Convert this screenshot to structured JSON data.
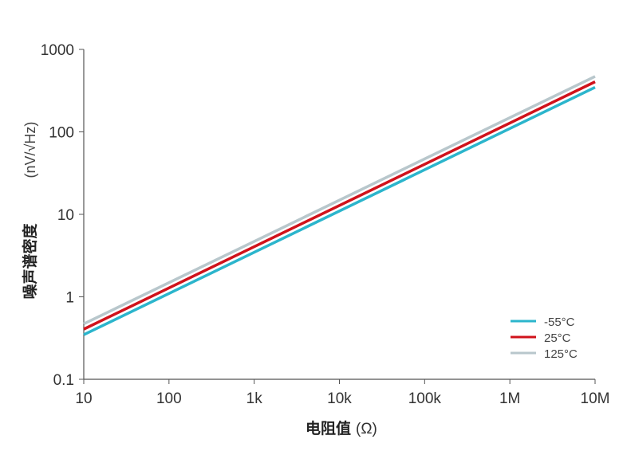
{
  "chart_data": {
    "type": "line",
    "title": "",
    "xlabel": "电阻值",
    "xlabel_unit": "(Ω)",
    "ylabel": "噪声谱密度",
    "ylabel_unit": "(nV/√Hz)",
    "x_scale": "log",
    "y_scale": "log",
    "xlim": [
      10,
      10000000
    ],
    "ylim": [
      0.1,
      1000
    ],
    "grid": false,
    "legend_position": "bottom-right",
    "x_ticks": [
      {
        "value": 10,
        "label": "10"
      },
      {
        "value": 100,
        "label": "100"
      },
      {
        "value": 1000,
        "label": "1k"
      },
      {
        "value": 10000,
        "label": "10k"
      },
      {
        "value": 100000,
        "label": "100k"
      },
      {
        "value": 1000000,
        "label": "1M"
      },
      {
        "value": 10000000,
        "label": "10M"
      }
    ],
    "y_ticks": [
      {
        "value": 0.1,
        "label": "0.1"
      },
      {
        "value": 1,
        "label": "1"
      },
      {
        "value": 10,
        "label": "10"
      },
      {
        "value": 100,
        "label": "100"
      },
      {
        "value": 1000,
        "label": "1000"
      }
    ],
    "series": [
      {
        "name": "125°C",
        "color": "#b8c7cc",
        "x": [
          10,
          10000000
        ],
        "y": [
          0.47,
          470
        ]
      },
      {
        "name": "-55°C",
        "color": "#2bb5cc",
        "x": [
          10,
          10000000
        ],
        "y": [
          0.347,
          347
        ]
      },
      {
        "name": "25°C",
        "color": "#d0121b",
        "x": [
          10,
          10000000
        ],
        "y": [
          0.405,
          405
        ]
      }
    ],
    "legend_order": [
      "-55°C",
      "25°C",
      "125°C"
    ]
  }
}
